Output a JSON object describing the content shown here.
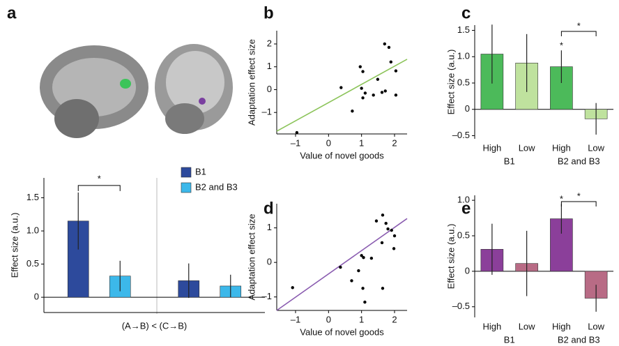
{
  "chart_data": [
    {
      "type": "bar",
      "panel": "a",
      "categories": [
        null,
        null
      ],
      "xlabel": "(A→B) < (C→B)",
      "ylabel": "Effect size (a.u.)",
      "series": [
        {
          "name": "B1",
          "color": "#2d4a9c",
          "values": [
            1.15,
            0.25
          ],
          "errors": [
            0.43,
            0.26
          ]
        },
        {
          "name": "B2 and B3",
          "color": "#3cb8ea",
          "values": [
            0.32,
            0.17
          ],
          "errors": [
            0.23,
            0.17
          ]
        }
      ],
      "ylim": [
        -0.23,
        1.8
      ],
      "yticks": [
        0,
        0.5,
        {
          "value": 1,
          "label": "1.0"
        },
        1.5
      ],
      "legend": "top-right",
      "annotations": [
        "*"
      ]
    },
    {
      "type": "scatter",
      "panel": "b",
      "xlabel": "Value of novel goods",
      "ylabel": "Adaptation effect size",
      "x": [
        -0.96,
        0.38,
        0.72,
        0.96,
        1.04,
        1.0,
        1.11,
        1.04,
        1.36,
        1.49,
        1.62,
        1.7,
        1.83,
        1.89,
        2.04,
        2.04,
        1.72
      ],
      "y": [
        -1.88,
        0.09,
        -0.94,
        1.0,
        0.79,
        0.06,
        -0.15,
        -0.36,
        -0.24,
        0.45,
        -0.12,
        2.0,
        1.85,
        1.21,
        0.82,
        -0.24,
        -0.06
      ],
      "color": "#000000",
      "fit": {
        "color": "#8cc45a",
        "x": [
          -1.57,
          2.38
        ],
        "y": [
          -1.82,
          1.33
        ]
      },
      "xlim": [
        -1.57,
        2.38
      ],
      "ylim": [
        -1.94,
        2.58
      ],
      "xticks": [
        {
          "value": -1,
          "label": "–1"
        },
        0,
        1,
        2
      ],
      "yticks": [
        {
          "value": -1,
          "label": "–1"
        },
        0,
        1,
        2
      ]
    },
    {
      "type": "bar",
      "panel": "c",
      "categories": [
        "High",
        "Low",
        "High",
        "Low"
      ],
      "groups": [
        "B1",
        "B2 and B3"
      ],
      "values": [
        1.05,
        0.88,
        0.81,
        -0.18
      ],
      "errors": [
        0.56,
        0.55,
        0.31,
        0.3
      ],
      "colors": [
        "#4cba5a",
        "#bfe29e",
        "#4cba5a",
        "#bfe29e"
      ],
      "ylabel": "Effect size (a.u.)",
      "ylim": [
        -0.56,
        1.6
      ],
      "yticks": [
        {
          "value": -0.5,
          "label": "–0.5"
        },
        0,
        0.5,
        {
          "value": 1,
          "label": "1.0"
        },
        1.5
      ],
      "annotations": [
        "*",
        "*"
      ]
    },
    {
      "type": "scatter",
      "panel": "d",
      "xlabel": "Value of novel goods",
      "ylabel": "Adaptation effect size",
      "x": [
        -1.09,
        0.36,
        0.7,
        0.91,
        1.0,
        1.06,
        1.04,
        1.1,
        1.3,
        1.45,
        1.62,
        1.64,
        1.74,
        1.8,
        1.91,
        1.98,
        1.64,
        2.0
      ],
      "y": [
        -0.73,
        -0.14,
        -0.53,
        -0.24,
        0.2,
        0.14,
        -0.75,
        -1.15,
        0.12,
        1.2,
        0.57,
        1.37,
        1.13,
        0.97,
        0.93,
        0.4,
        -0.75,
        0.77
      ],
      "color": "#000000",
      "fit": {
        "color": "#8a5cb0",
        "x": [
          -1.57,
          2.38
        ],
        "y": [
          -1.39,
          1.27
        ]
      },
      "xlim": [
        -1.57,
        2.38
      ],
      "ylim": [
        -1.39,
        1.7
      ],
      "xticks": [
        {
          "value": -1,
          "label": "–1"
        },
        0,
        1,
        2
      ],
      "yticks": [
        {
          "value": -1,
          "label": "–1"
        },
        0,
        1
      ]
    },
    {
      "type": "bar",
      "panel": "e",
      "categories": [
        "High",
        "Low",
        "High",
        "Low"
      ],
      "groups": [
        "B1",
        "B2 and B3"
      ],
      "values": [
        0.31,
        0.11,
        0.74,
        -0.38
      ],
      "errors": [
        0.36,
        0.46,
        0.21,
        0.19
      ],
      "colors": [
        "#8b3f9a",
        "#b86b85",
        "#8b3f9a",
        "#b86b85"
      ],
      "ylabel": "Effect size (a.u.)",
      "ylim": [
        -0.65,
        1.07
      ],
      "yticks": [
        {
          "value": -0.5,
          "label": "–0.5"
        },
        0,
        0.5,
        {
          "value": 1,
          "label": "1.0"
        }
      ],
      "annotations": [
        "*",
        "*"
      ]
    }
  ]
}
